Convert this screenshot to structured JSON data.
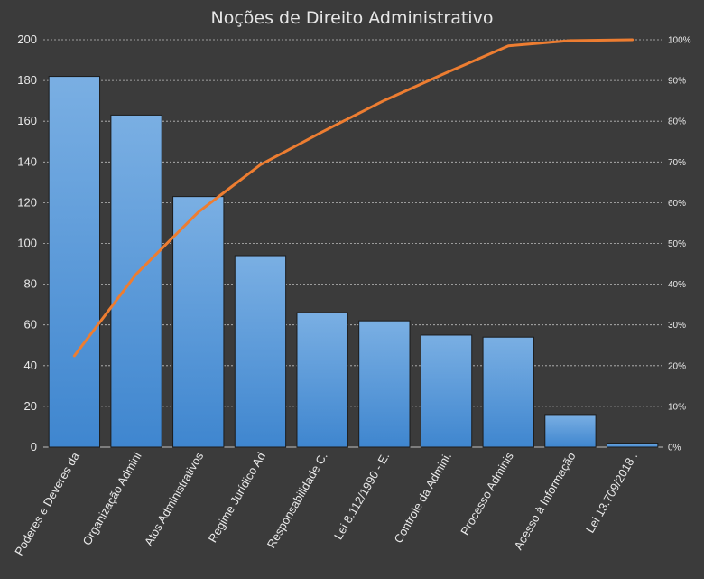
{
  "chart_data": {
    "type": "bar",
    "title": "Noções de Direito Administrativo",
    "xlabel": "",
    "ylabel": "",
    "categories": [
      "Poderes e Deveres da",
      "Organização Admini",
      "Atos Administrativos",
      "Regime Jurídico Ad",
      "Responsabilidade C.",
      "Lei 8.112/1990 - E.",
      "Controle da Admini.",
      "Processo Adminis",
      "Acesso à Informação",
      "Lei 13.709/2018 ."
    ],
    "series": [
      {
        "type": "bar",
        "values": [
          182,
          163,
          123,
          94,
          66,
          62,
          55,
          54,
          16,
          2
        ],
        "color": "#5b9bd5"
      },
      {
        "type": "line",
        "axis": "right",
        "values": [
          22.4,
          42.5,
          57.7,
          69.3,
          77.4,
          85.1,
          91.9,
          98.5,
          99.8,
          100.0
        ],
        "color": "#ed7d31"
      }
    ],
    "ylim": [
      0,
      200
    ],
    "yticks": [
      0,
      20,
      40,
      60,
      80,
      100,
      120,
      140,
      160,
      180,
      200
    ],
    "y2lim": [
      0,
      100
    ],
    "y2ticks": [
      "0%",
      "10%",
      "20%",
      "30%",
      "40%",
      "50%",
      "60%",
      "70%",
      "80%",
      "90%",
      "100%"
    ],
    "grid": true,
    "legend": "none"
  }
}
